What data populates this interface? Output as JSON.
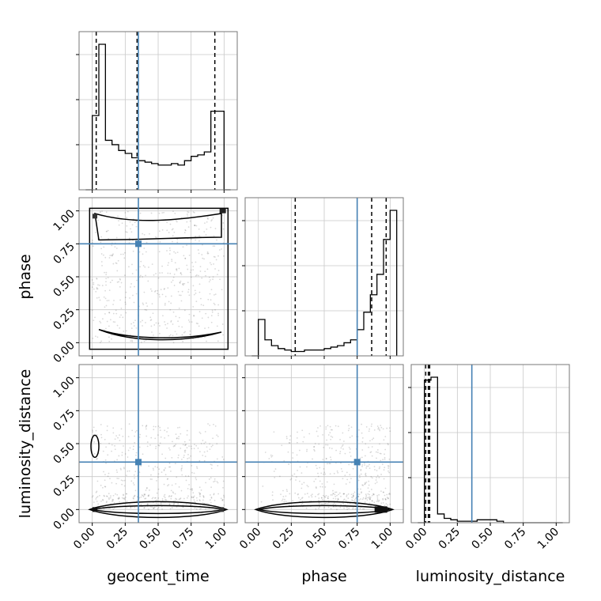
{
  "chart_data": {
    "type": "corner",
    "parameters": [
      "geocent_time",
      "phase",
      "luminosity_distance"
    ],
    "axis_labels": {
      "x": [
        "geocent_time",
        "phase",
        "luminosity_distance"
      ],
      "y": [
        "phase",
        "luminosity_distance"
      ]
    },
    "range": [
      -0.1,
      1.1
    ],
    "ticks": [
      0.0,
      0.25,
      0.5,
      0.75,
      1.0
    ],
    "tick_labels": [
      "0.00",
      "0.25",
      "0.50",
      "0.75",
      "1.00"
    ],
    "truths": [
      0.35,
      0.75,
      0.36
    ],
    "truth_color": "#4682b4",
    "quantiles": [
      [
        0.03,
        0.34,
        0.93
      ],
      [
        0.28,
        0.86,
        0.97
      ],
      [
        0.01,
        0.03,
        0.04
      ]
    ],
    "histograms": [
      {
        "bin_edges": [
          -0.05,
          0.0,
          0.05,
          0.1,
          0.15,
          0.2,
          0.25,
          0.3,
          0.35,
          0.4,
          0.45,
          0.5,
          0.55,
          0.6,
          0.65,
          0.7,
          0.75,
          0.8,
          0.85,
          0.9,
          0.95,
          1.0,
          1.05
        ],
        "counts": [
          0.0,
          0.51,
          1.0,
          0.34,
          0.31,
          0.27,
          0.25,
          0.22,
          0.2,
          0.19,
          0.18,
          0.17,
          0.17,
          0.18,
          0.17,
          0.2,
          0.23,
          0.24,
          0.26,
          0.54,
          0.54,
          0.0
        ]
      },
      {
        "bin_edges": [
          -0.05,
          0.0,
          0.05,
          0.1,
          0.15,
          0.2,
          0.25,
          0.3,
          0.35,
          0.4,
          0.45,
          0.5,
          0.55,
          0.6,
          0.65,
          0.7,
          0.75,
          0.8,
          0.85,
          0.9,
          0.95,
          1.0,
          1.05
        ],
        "counts": [
          0.0,
          0.25,
          0.11,
          0.07,
          0.05,
          0.04,
          0.03,
          0.03,
          0.04,
          0.04,
          0.04,
          0.05,
          0.06,
          0.07,
          0.09,
          0.11,
          0.18,
          0.3,
          0.42,
          0.56,
          0.8,
          1.0
        ]
      },
      {
        "bin_edges": [
          -0.05,
          0.0,
          0.05,
          0.1,
          0.15,
          0.2,
          0.25,
          0.3,
          0.35,
          0.4,
          0.45,
          0.5,
          0.55,
          0.6,
          0.65,
          0.7,
          0.75,
          0.8,
          0.85,
          0.9,
          0.95,
          1.0,
          1.05
        ],
        "counts": [
          0.0,
          0.98,
          1.0,
          0.06,
          0.03,
          0.02,
          0.01,
          0.01,
          0.01,
          0.02,
          0.02,
          0.02,
          0.01,
          0.0,
          0.0,
          0.0,
          0.0,
          0.0,
          0.0,
          0.0,
          0.0,
          0.0
        ]
      }
    ],
    "grid": true
  }
}
